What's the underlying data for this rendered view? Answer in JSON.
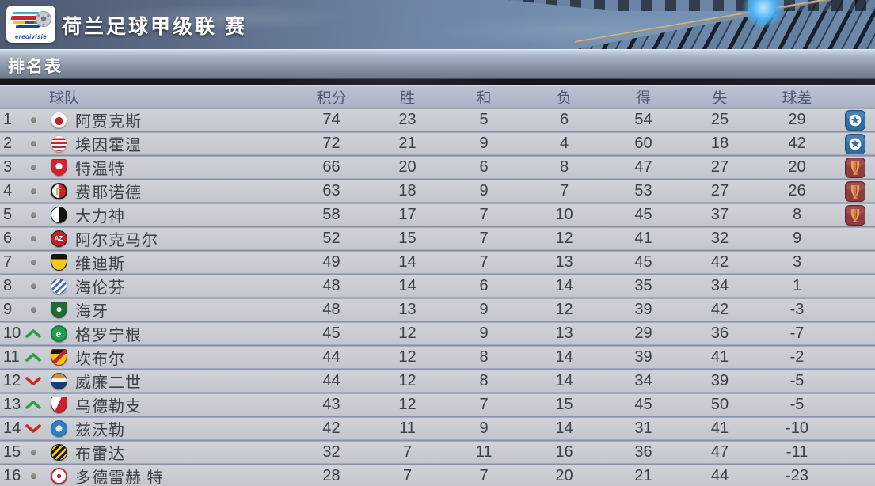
{
  "header": {
    "logo_text": "eredivisie",
    "league_title": "荷兰足球甲级联 赛",
    "section_title": "排名表"
  },
  "colors": {
    "up_arrow": "#2e9e38",
    "down_arrow": "#cc2a1e",
    "dot": "#8f8e88",
    "ucl_badge": "#2b6da6",
    "uel_badge": "#8e3b41",
    "uel_trophy": "#f29f3f",
    "header_text": "#4d5a78",
    "row_text": "#3b4049"
  },
  "table": {
    "columns": {
      "team": "球队",
      "points": "积分",
      "wins": "胜",
      "draws": "和",
      "losses": "负",
      "goals_for": "得",
      "goals_against": "失",
      "goal_diff": "球差"
    },
    "rows": [
      {
        "rank": 1,
        "movement": "same",
        "team": "阿贾克斯",
        "points": 74,
        "wins": 23,
        "draws": 5,
        "losses": 6,
        "gf": 54,
        "ga": 25,
        "gd": 29,
        "qualification": "ucl",
        "badge": {
          "shape": "circle",
          "bg": "radial-gradient(circle at 50% 58%, #c6202a 0 34%, #ffffff 35%)",
          "border": "1px solid #b9bdc4",
          "glyph": "",
          "glyph_color": ""
        }
      },
      {
        "rank": 2,
        "movement": "same",
        "team": "埃因霍温",
        "points": 72,
        "wins": 21,
        "draws": 9,
        "losses": 4,
        "gf": 60,
        "ga": 18,
        "gd": 42,
        "qualification": "ucl",
        "badge": {
          "shape": "circle",
          "bg": "repeating-linear-gradient(180deg, #ffffff 0 2.5px, #d02030 2.5px 5px)",
          "border": "1px solid #c0c4ca",
          "glyph": "",
          "glyph_color": ""
        }
      },
      {
        "rank": 3,
        "movement": "same",
        "team": "特温特",
        "points": 66,
        "wins": 20,
        "draws": 6,
        "losses": 8,
        "gf": 47,
        "ga": 27,
        "gd": 20,
        "qualification": "uel",
        "badge": {
          "shape": "shield",
          "bg": "radial-gradient(circle at 50% 42%, #ffffff 0 28%, #d8232f 29%)",
          "border": "1px solid #a51f28",
          "glyph": "",
          "glyph_color": ""
        }
      },
      {
        "rank": 4,
        "movement": "same",
        "team": "费耶诺德",
        "points": 63,
        "wins": 18,
        "draws": 9,
        "losses": 7,
        "gf": 53,
        "ga": 27,
        "gd": 26,
        "qualification": "uel",
        "badge": {
          "shape": "circle",
          "bg": "linear-gradient(90deg, #ffffff 0 50%, #d02030 50%)",
          "border": "2px solid #1a1a1a",
          "glyph": "F",
          "glyph_color": "#d9a93c"
        }
      },
      {
        "rank": 5,
        "movement": "same",
        "team": "大力神",
        "points": 58,
        "wins": 17,
        "draws": 7,
        "losses": 10,
        "gf": 45,
        "ga": 37,
        "gd": 8,
        "qualification": "uel",
        "badge": {
          "shape": "circle",
          "bg": "linear-gradient(90deg, #ffffff 0 50%, #141414 50%)",
          "border": "1px solid #141414",
          "glyph": "",
          "glyph_color": ""
        }
      },
      {
        "rank": 6,
        "movement": "same",
        "team": "阿尔克马尔",
        "points": 52,
        "wins": 15,
        "draws": 7,
        "losses": 12,
        "gf": 41,
        "ga": 32,
        "gd": 9,
        "qualification": null,
        "badge": {
          "shape": "circle",
          "bg": "#c51f2e",
          "border": "1px solid #141414",
          "glyph": "AZ",
          "glyph_color": "#ffffff"
        }
      },
      {
        "rank": 7,
        "movement": "same",
        "team": "维迪斯",
        "points": 49,
        "wins": 14,
        "draws": 7,
        "losses": 13,
        "gf": 45,
        "ga": 42,
        "gd": 3,
        "qualification": null,
        "badge": {
          "shape": "shield",
          "bg": "linear-gradient(180deg, #141414 0 30%, #f5c81e 30%)",
          "border": "1px solid #141414",
          "glyph": "",
          "glyph_color": ""
        }
      },
      {
        "rank": 8,
        "movement": "same",
        "team": "海伦芬",
        "points": 48,
        "wins": 14,
        "draws": 6,
        "losses": 14,
        "gf": 35,
        "ga": 34,
        "gd": 1,
        "qualification": null,
        "badge": {
          "shape": "circle",
          "bg": "repeating-linear-gradient(135deg, #ffffff 0 3px, #3f6db5 3px 6px)",
          "border": "1px solid #b9bdc4",
          "glyph": "",
          "glyph_color": ""
        }
      },
      {
        "rank": 9,
        "movement": "same",
        "team": "海牙",
        "points": 48,
        "wins": 13,
        "draws": 9,
        "losses": 12,
        "gf": 39,
        "ga": 42,
        "gd": -3,
        "qualification": null,
        "badge": {
          "shape": "shield",
          "bg": "radial-gradient(circle at 50% 48%, #f5f2e4 0 22%, #1e6b34 23%)",
          "border": "1px solid #14502a",
          "glyph": "",
          "glyph_color": ""
        }
      },
      {
        "rank": 10,
        "movement": "up",
        "team": "格罗宁根",
        "points": 45,
        "wins": 12,
        "draws": 9,
        "losses": 13,
        "gf": 29,
        "ga": 36,
        "gd": -7,
        "qualification": null,
        "badge": {
          "shape": "circle",
          "bg": "#1fa04a",
          "border": "2px solid #128040",
          "glyph": "e",
          "glyph_color": "#ffffff"
        }
      },
      {
        "rank": 11,
        "movement": "up",
        "team": "坎布尔",
        "points": 44,
        "wins": 12,
        "draws": 8,
        "losses": 14,
        "gf": 39,
        "ga": 41,
        "gd": -2,
        "qualification": null,
        "badge": {
          "shape": "shield",
          "bg": "linear-gradient(135deg, rgba(0,0,0,0) 0 42%, #d02030 42% 58%, rgba(0,0,0,0) 58%), linear-gradient(180deg, #141414 0 26%, #f2c712 26%)",
          "border": "1px solid #8c1d22",
          "glyph": "",
          "glyph_color": ""
        }
      },
      {
        "rank": 12,
        "movement": "down",
        "team": "威廉二世",
        "points": 44,
        "wins": 12,
        "draws": 8,
        "losses": 14,
        "gf": 34,
        "ga": 39,
        "gd": -5,
        "qualification": null,
        "badge": {
          "shape": "circle",
          "bg": "linear-gradient(180deg, #e8862a 0 32%, #f2f2f2 32% 58%, #1d3a6e 58%)",
          "border": "1px solid #1d3a6e",
          "glyph": "",
          "glyph_color": ""
        }
      },
      {
        "rank": 13,
        "movement": "up",
        "team": "乌德勒支",
        "points": 43,
        "wins": 12,
        "draws": 7,
        "losses": 15,
        "gf": 45,
        "ga": 50,
        "gd": -5,
        "qualification": null,
        "badge": {
          "shape": "shield",
          "bg": "linear-gradient(115deg, #ffffff 0 45%, #d02030 45%)",
          "border": "1px solid #8c1d22",
          "glyph": "",
          "glyph_color": ""
        }
      },
      {
        "rank": 14,
        "movement": "down",
        "team": "兹沃勒",
        "points": 42,
        "wins": 11,
        "draws": 9,
        "losses": 14,
        "gf": 31,
        "ga": 41,
        "gd": -10,
        "qualification": null,
        "badge": {
          "shape": "circle",
          "bg": "radial-gradient(circle at 50% 50%, #dcebf5 0 30%, #2e7fc2 31%)",
          "border": "1px solid #2463a0",
          "glyph": "",
          "glyph_color": ""
        }
      },
      {
        "rank": 15,
        "movement": "same",
        "team": "布雷达",
        "points": 32,
        "wins": 7,
        "draws": 11,
        "losses": 16,
        "gf": 36,
        "ga": 47,
        "gd": -11,
        "qualification": null,
        "badge": {
          "shape": "circle",
          "bg": "repeating-linear-gradient(135deg, #141414 0 3px, #f2c712 3px 6px)",
          "border": "1px solid #141414",
          "glyph": "",
          "glyph_color": ""
        }
      },
      {
        "rank": 16,
        "movement": "same",
        "team": "多德雷赫 特",
        "points": 28,
        "wins": 7,
        "draws": 7,
        "losses": 20,
        "gf": 21,
        "ga": 44,
        "gd": -23,
        "qualification": null,
        "badge": {
          "shape": "circle",
          "bg": "radial-gradient(circle at 50% 50%, #d02030 0 22%, #ffffff 23%)",
          "border": "2px solid #d02030",
          "glyph": "",
          "glyph_color": ""
        }
      }
    ]
  }
}
